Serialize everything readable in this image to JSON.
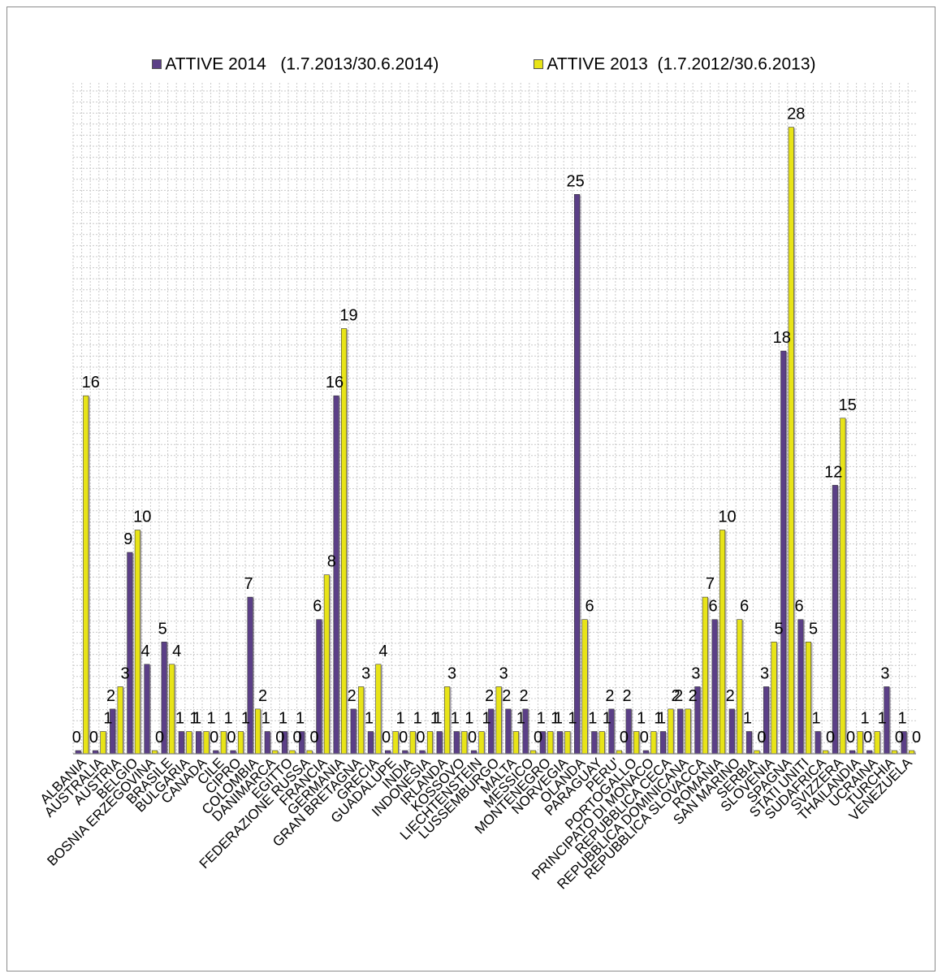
{
  "colors": {
    "series_2014": "#5b3f87",
    "series_2013": "#e8e417",
    "grid": "#c9c9c9",
    "axis": "#808080",
    "border": "#8c8c8c"
  },
  "legend": {
    "item_2014": "ATTIVE 2014   (1.7.2013/30.6.2014)",
    "item_2013": "ATTIVE 2013  (1.7.2012/30.6.2013)"
  },
  "chart_data": {
    "type": "bar",
    "title": "",
    "xlabel": "",
    "ylabel": "",
    "ylim": [
      0,
      28
    ],
    "grid": true,
    "legend_position": "top",
    "categories": [
      "ALBANIA",
      "AUSTRALIA",
      "AUSTRIA",
      "BELGIO",
      "BOSNIA ERZEGOVINA",
      "BRASILE",
      "BULGARIA",
      "CANADA",
      "CILE",
      "CIPRO",
      "COLOMBIA",
      "DANIMARCA",
      "EGITTO",
      "FEDERAZIONE RUSSA",
      "FRANCIA",
      "GERMANIA",
      "GRAN BRETAGNA",
      "GRECIA",
      "GUADALUPE",
      "INDIA",
      "INDONESIA",
      "IRLANDA",
      "KOSSOVO",
      "LIECHTENSTEIN",
      "LUSSEMBURGO",
      "MALTA",
      "MESSICO",
      "MONTENEGRO",
      "NORVEGIA",
      "OLANDA",
      "PARAGUAY",
      "PERU'",
      "PORTOGALLO",
      "PRINCIPATO DI MONACO",
      "REPUBBLICA CECA",
      "REPUBBLICA DOMINICANA",
      "REPUBBLICA SLOVACCA",
      "ROMANIA",
      "SAN MARINO",
      "SERBIA",
      "SLOVENIA",
      "SPAGNA",
      "STATI UNITI",
      "SUDAFRICA",
      "SVIZZERA",
      "THAILANDIA",
      "UCRAINA",
      "TURCHIA",
      "VENEZUELA"
    ],
    "series": [
      {
        "name": "ATTIVE 2014   (1.7.2013/30.6.2014)",
        "values": [
          0,
          0,
          2,
          9,
          4,
          5,
          1,
          1,
          0,
          0,
          7,
          1,
          1,
          1,
          6,
          16,
          2,
          1,
          0,
          0,
          0,
          1,
          1,
          0,
          2,
          2,
          2,
          1,
          1,
          25,
          1,
          2,
          2,
          0,
          1,
          2,
          3,
          6,
          2,
          1,
          3,
          18,
          6,
          1,
          12,
          0,
          0,
          3,
          1
        ]
      },
      {
        "name": "ATTIVE 2013  (1.7.2012/30.6.2013)",
        "values": [
          16,
          1,
          3,
          10,
          0,
          4,
          1,
          1,
          1,
          1,
          2,
          0,
          0,
          0,
          8,
          19,
          3,
          4,
          1,
          1,
          1,
          3,
          1,
          1,
          3,
          1,
          0,
          1,
          1,
          6,
          1,
          0,
          1,
          1,
          2,
          2,
          7,
          10,
          6,
          0,
          5,
          28,
          5,
          0,
          15,
          1,
          1,
          0,
          0
        ]
      }
    ]
  }
}
